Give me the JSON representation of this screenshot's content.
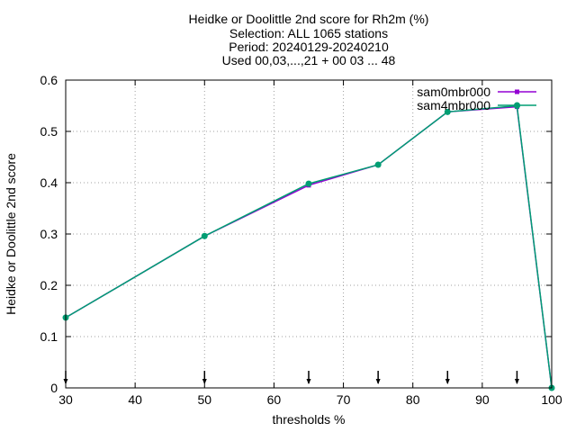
{
  "chart_data": {
    "type": "line",
    "title_lines": [
      "Heidke or Doolittle 2nd score  for Rh2m (%)",
      "Selection: ALL    1065 stations",
      "Period: 20240129-20240210",
      "Used 00,03,...,21 + 00 03 ... 48"
    ],
    "xlabel": "thresholds %",
    "ylabel": "Heidke or Doolittle 2nd score",
    "xlim": [
      30,
      100
    ],
    "ylim": [
      0,
      0.6
    ],
    "xticks": [
      "30",
      "40",
      "50",
      "60",
      "70",
      "80",
      "90",
      "100"
    ],
    "yticks": [
      "0",
      "0.1",
      "0.2",
      "0.3",
      "0.4",
      "0.5",
      "0.6"
    ],
    "grid": true,
    "legend_position": "top-right",
    "series": [
      {
        "name": "sam0mbr000",
        "color": "#9400d3",
        "x": [
          30,
          50,
          65,
          75,
          85,
          95,
          100
        ],
        "y": [
          0.137,
          0.296,
          0.395,
          0.435,
          0.538,
          0.548,
          0.0
        ]
      },
      {
        "name": "sam4mbr000",
        "color": "#009e73",
        "x": [
          30,
          50,
          65,
          75,
          85,
          95,
          100
        ],
        "y": [
          0.137,
          0.296,
          0.398,
          0.435,
          0.538,
          0.55,
          0.0
        ]
      }
    ],
    "markers_x": [
      30,
      50,
      65,
      75,
      85,
      95
    ]
  }
}
